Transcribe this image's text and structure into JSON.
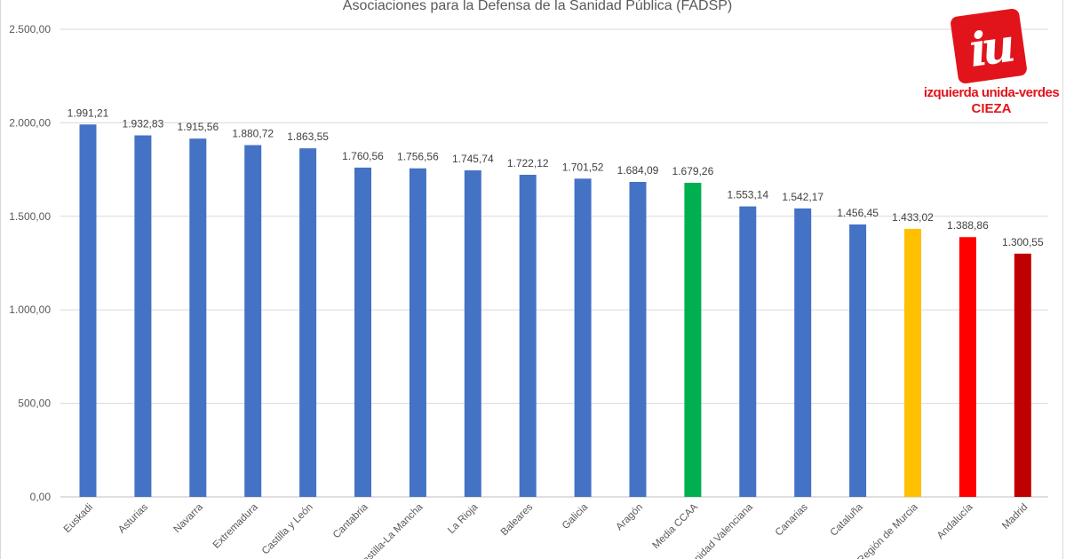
{
  "chart_data": {
    "type": "bar",
    "title": "Asociaciones para la Defensa de la Sanidad Pública (FADSP)",
    "xlabel": "",
    "ylabel": "",
    "ylim": [
      0,
      2500
    ],
    "yticks": [
      "0,00",
      "500,00",
      "1.000,00",
      "1.500,00",
      "2.000,00",
      "2.500,00"
    ],
    "ytick_values": [
      0,
      500,
      1000,
      1500,
      2000,
      2500
    ],
    "grid": true,
    "categories": [
      "Euskadi",
      "Asturias",
      "Navarra",
      "Extremadura",
      "Castilla y León",
      "Cantabria",
      "Castilla-La Mancha",
      "La Rioja",
      "Baleares",
      "Galicia",
      "Aragón",
      "Media CCAA",
      "Comunidad Valenciana",
      "Canarias",
      "Cataluña",
      "Región de Murcia",
      "Andalucía",
      "Madrid"
    ],
    "values": [
      1991.21,
      1932.83,
      1915.56,
      1880.72,
      1863.55,
      1760.56,
      1756.56,
      1745.74,
      1722.12,
      1701.52,
      1684.09,
      1679.26,
      1553.14,
      1542.17,
      1456.45,
      1433.02,
      1388.86,
      1300.55
    ],
    "data_labels": [
      "1.991,21",
      "1.932,83",
      "1.915,56",
      "1.880,72",
      "1.863,55",
      "1.760,56",
      "1.756,56",
      "1.745,74",
      "1.722,12",
      "1.701,52",
      "1.684,09",
      "1.679,26",
      "1.553,14",
      "1.542,17",
      "1.456,45",
      "1.433,02",
      "1.388,86",
      "1.300,55"
    ],
    "colors": [
      "#4472C4",
      "#4472C4",
      "#4472C4",
      "#4472C4",
      "#4472C4",
      "#4472C4",
      "#4472C4",
      "#4472C4",
      "#4472C4",
      "#4472C4",
      "#4472C4",
      "#00B050",
      "#4472C4",
      "#4472C4",
      "#4472C4",
      "#FFC000",
      "#FF0000",
      "#C00000"
    ]
  },
  "logo": {
    "mark": "iu",
    "line1": "izquierda unida-verdes",
    "line2": "CIEZA"
  }
}
